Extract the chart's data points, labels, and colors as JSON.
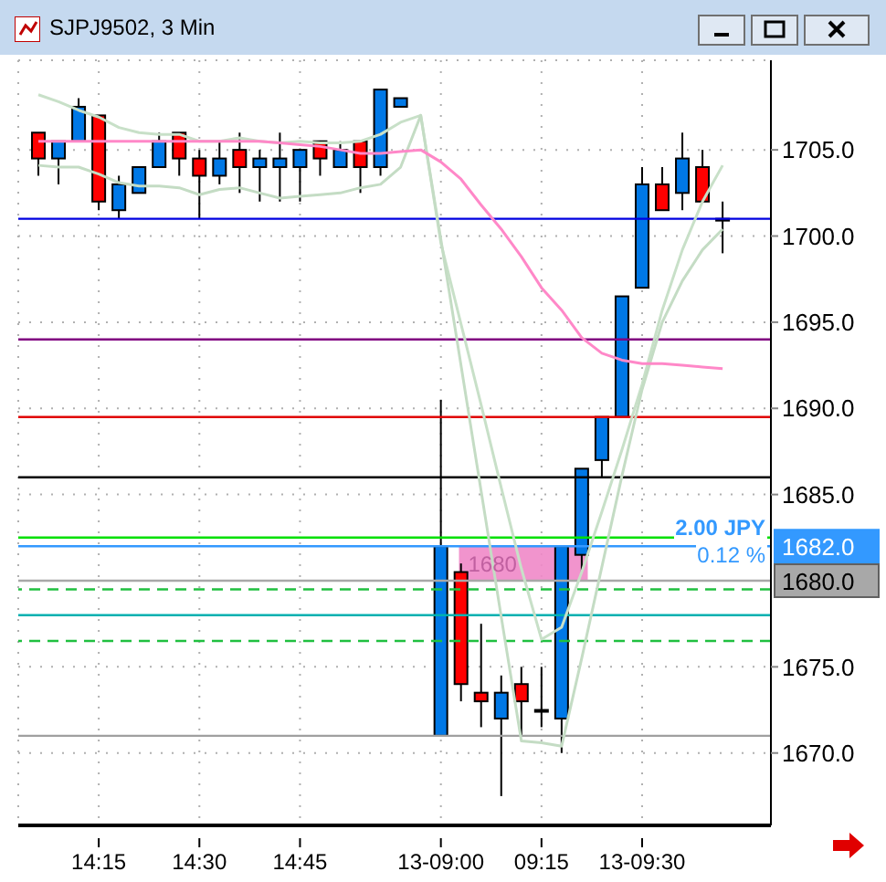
{
  "chart_data": {
    "type": "candlestick",
    "title": "SJPJ9502, 3 Min",
    "categories": [
      null,
      null,
      null,
      "14:15",
      null,
      null,
      null,
      null,
      "14:30",
      null,
      null,
      null,
      null,
      "14:45",
      null,
      null,
      null,
      null,
      null,
      null,
      "13-09:00",
      null,
      null,
      null,
      null,
      "09:15",
      null,
      null,
      null,
      null,
      "13-09:30",
      null,
      null,
      null,
      null
    ],
    "ohlc": [
      [
        1706,
        1706,
        1703.5,
        1704.5
      ],
      [
        1704.5,
        1705.5,
        1703,
        1705.5
      ],
      [
        1705.5,
        1708,
        1705.5,
        1707.5
      ],
      [
        1707,
        1707,
        1701.5,
        1702
      ],
      [
        1701.5,
        1703.5,
        1701,
        1703
      ],
      [
        1702.5,
        1704,
        1702.5,
        1704
      ],
      [
        1704,
        1706,
        1704,
        1705.5
      ],
      [
        1706,
        1706,
        1703.5,
        1704.5
      ],
      [
        1704.5,
        1705,
        1701,
        1703.5
      ],
      [
        1703.5,
        1705.5,
        1703,
        1704.5
      ],
      [
        1705,
        1706,
        1702.5,
        1704
      ],
      [
        1704,
        1705,
        1702,
        1704.5
      ],
      [
        1704,
        1706,
        1702,
        1704.5
      ],
      [
        1704,
        1705,
        1702,
        1705
      ],
      [
        1705.5,
        1705.5,
        1703.5,
        1704.5
      ],
      [
        1704,
        1705.5,
        1704,
        1705
      ],
      [
        1705.5,
        1705.5,
        1702.5,
        1704
      ],
      [
        1704,
        1708.5,
        1703.5,
        1708.5
      ],
      [
        1707.5,
        1708,
        1707.5,
        1708
      ],
      null,
      [
        1671,
        1690.5,
        1671,
        1682
      ],
      [
        1680.5,
        1681,
        1673,
        1674
      ],
      [
        1673.5,
        1677.5,
        1671.5,
        1673
      ],
      [
        1672,
        1674.5,
        1667.5,
        1673.5
      ],
      [
        1674,
        1675,
        1671,
        1673
      ],
      [
        1672.5,
        1675,
        1671.5,
        1672.5
      ],
      [
        1672,
        1682,
        1670,
        1682
      ],
      [
        1681.5,
        1686.5,
        1680.5,
        1686.5
      ],
      [
        1687,
        1689.5,
        1686,
        1689.5
      ],
      [
        1689.5,
        1696.5,
        1689.5,
        1696.5
      ],
      [
        1697,
        1704,
        1697,
        1703
      ],
      [
        1703,
        1704,
        1701.5,
        1701.5
      ],
      [
        1702.5,
        1706,
        1701.5,
        1704.5
      ],
      [
        1704,
        1705,
        1702,
        1702
      ],
      [
        1701,
        1702,
        1699,
        1701
      ]
    ],
    "colors": [
      "#ff0000",
      "#0078e6",
      "#0078e6",
      "#ff0000",
      "#0078e6",
      "#0078e6",
      "#0078e6",
      "#ff0000",
      "#ff0000",
      "#0078e6",
      "#ff0000",
      "#0078e6",
      "#0078e6",
      "#0078e6",
      "#ff0000",
      "#0078e6",
      "#ff0000",
      "#0078e6",
      "#0078e6",
      null,
      "#0078e6",
      "#ff0000",
      "#ff0000",
      "#0078e6",
      "#ff0000",
      "#0078e6",
      "#0078e6",
      "#0078e6",
      "#0078e6",
      "#0078e6",
      "#0078e6",
      "#ff0000",
      "#0078e6",
      "#ff0000",
      "#0078e6"
    ],
    "series": [
      {
        "type": "line",
        "color": "#c8e0c8",
        "values": [
          1708.2,
          1707.8,
          1707.3,
          1706.9,
          1706.3,
          1706,
          1705.9,
          1705.9,
          1705.5,
          1705.5,
          1705.7,
          1705.5,
          1705.4,
          1705.5,
          1705.4,
          1705.4,
          1705.5,
          1705.9,
          1706.6,
          1707,
          1699.6,
          1694.9,
          1690.2,
          1685.4,
          1680.7,
          1676.6,
          1677.3,
          1680.5,
          1684,
          1687.6,
          1691.4,
          1695.7,
          1699.2,
          1702,
          1704.1
        ]
      },
      {
        "type": "line",
        "color": "#c4dcc4",
        "values": [
          1704.1,
          1704,
          1704,
          1703.6,
          1703.1,
          1702.9,
          1702.9,
          1702.8,
          1702.4,
          1702.7,
          1702.8,
          1702.5,
          1702.2,
          1702.3,
          1702.4,
          1702.5,
          1702.8,
          1703,
          1704,
          1707,
          1699.8,
          1692.5,
          1685.2,
          1677.9,
          1670.7,
          1670.6,
          1670.4,
          1675.5,
          1680.8,
          1686.1,
          1691.1,
          1695,
          1697.4,
          1699.2,
          1700.4
        ]
      },
      {
        "type": "line",
        "color": "#ff88c8",
        "values": [
          1705.5,
          1705.5,
          1705.5,
          1705.5,
          1705.5,
          1705.5,
          1705.5,
          1705.5,
          1705.5,
          1705.5,
          1705.5,
          1705.5,
          1705.4,
          1705.3,
          1705.2,
          1705,
          1704.8,
          1704.8,
          1704.9,
          1705,
          1704.3,
          1703.3,
          1701.8,
          1700.4,
          1698.8,
          1697,
          1695.7,
          1694.1,
          1693.2,
          1692.8,
          1692.6,
          1692.6,
          1692.5,
          1692.4,
          1692.3
        ]
      }
    ],
    "ylim": [
      1665.8,
      1710.2
    ],
    "yticks": [
      {
        "value": 1670,
        "label": "1670.0"
      },
      {
        "value": 1675,
        "label": "1675.0"
      },
      {
        "value": 1685,
        "label": "1685.0"
      },
      {
        "value": 1690,
        "label": "1690.0"
      },
      {
        "value": 1695,
        "label": "1695.0"
      },
      {
        "value": 1700,
        "label": "1700.0"
      },
      {
        "value": 1705,
        "label": "1705.0"
      }
    ],
    "ref_lines": [
      {
        "axis": "y",
        "value": 1701,
        "color": "#0000e0",
        "line_style": "solid"
      },
      {
        "axis": "y",
        "value": 1694,
        "color": "#800080",
        "line_style": "solid"
      },
      {
        "axis": "y",
        "value": 1689.5,
        "color": "#e00000",
        "line_style": "solid"
      },
      {
        "axis": "y",
        "value": 1686,
        "color": "#000000",
        "line_style": "solid"
      },
      {
        "axis": "y",
        "value": 1682.5,
        "color": "#00e000",
        "line_style": "solid"
      },
      {
        "axis": "y",
        "value": 1682,
        "color": "#3399ff",
        "line_style": "solid",
        "label": "1682.0"
      },
      {
        "axis": "y",
        "value": 1680,
        "color": "#a8a8a8",
        "line_style": "solid",
        "label": "1680.0"
      },
      {
        "axis": "y",
        "value": 1679.5,
        "color": "#20c040",
        "line_style": "dashed"
      },
      {
        "axis": "y",
        "value": 1678,
        "color": "#00b0b0",
        "line_style": "solid"
      },
      {
        "axis": "y",
        "value": 1676.5,
        "color": "#20c040",
        "line_style": "dashed"
      },
      {
        "axis": "y",
        "value": 1671,
        "color": "#a0a0a0",
        "line_style": "solid"
      }
    ],
    "bands": [
      {
        "axis": "y",
        "from": 1680,
        "to": 1682,
        "label": "1680",
        "color": "#f088c8"
      }
    ],
    "annotations": [
      "2.00 JPY",
      "0.12 %"
    ],
    "grid": true
  }
}
